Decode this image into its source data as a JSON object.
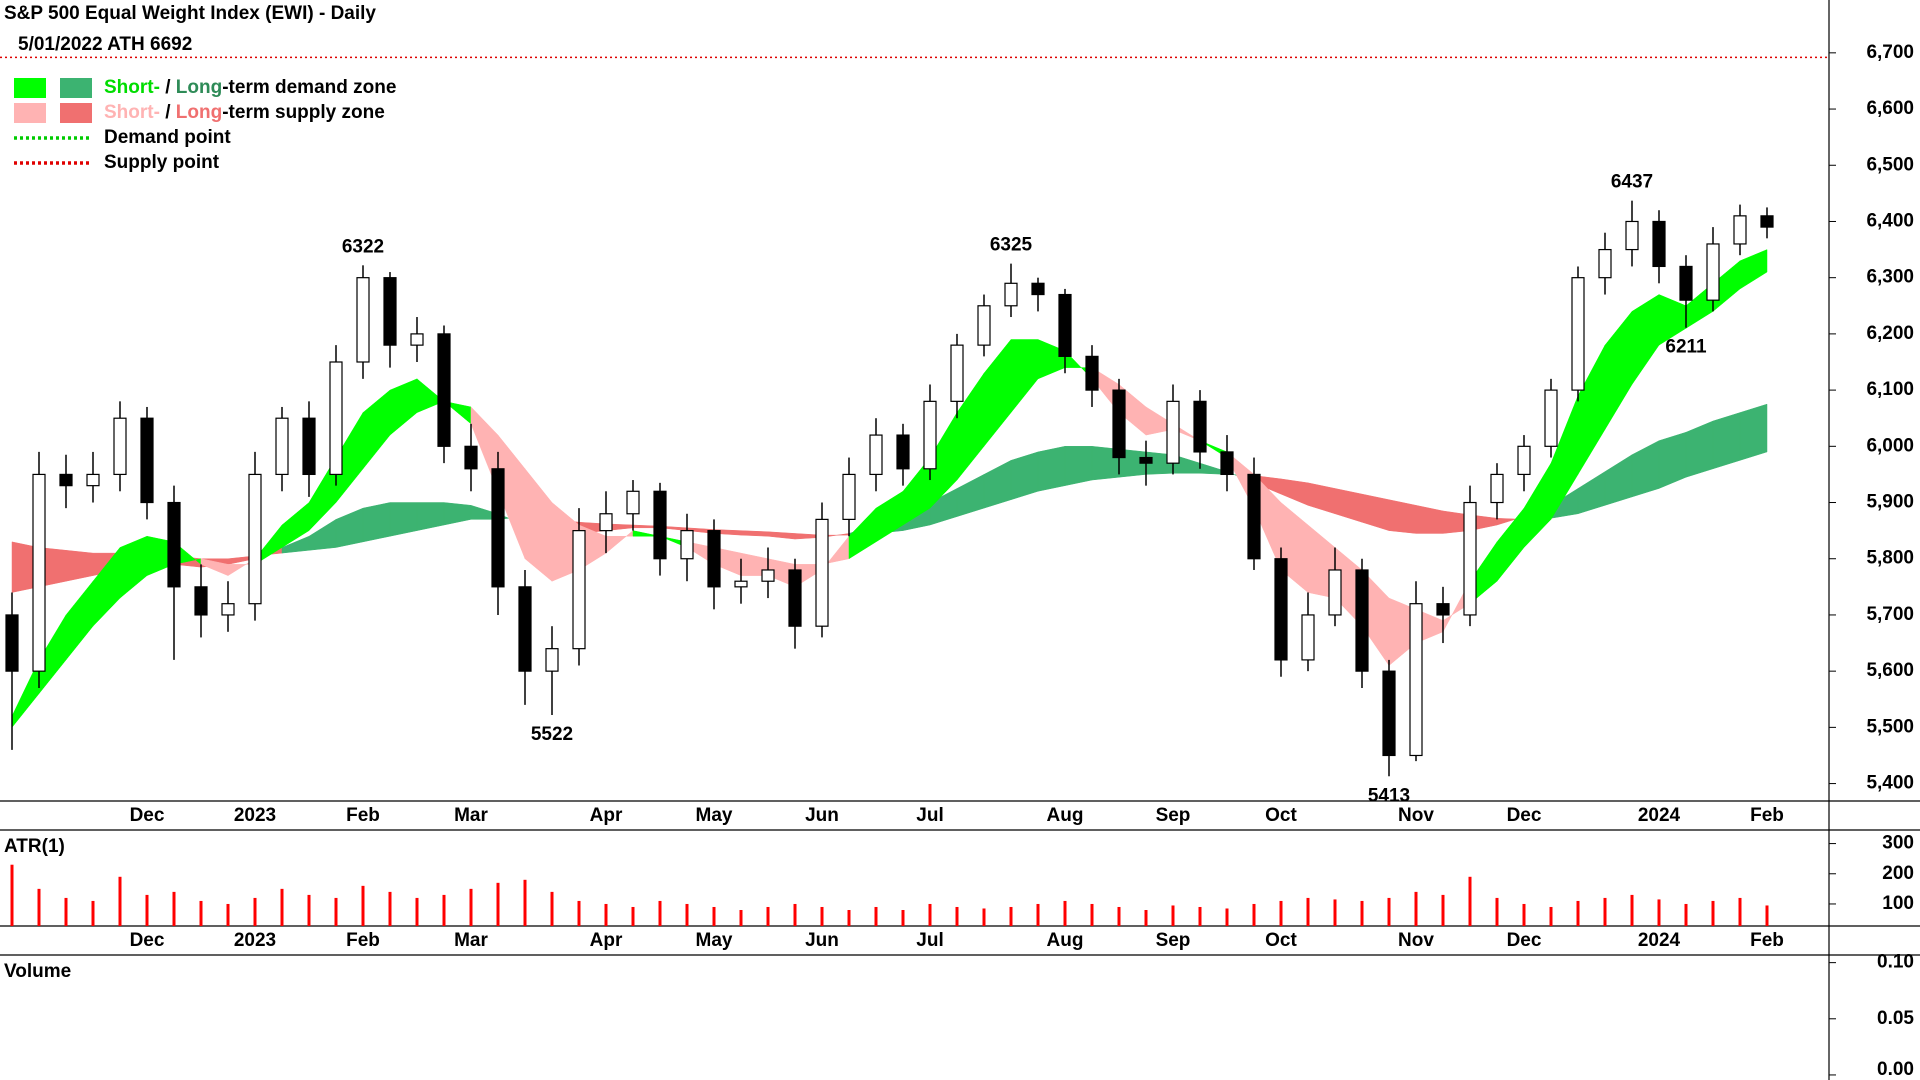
{
  "chart_data": {
    "type": "candlestick",
    "title": "S&P 500 Equal Weight Index (EWI) - Daily",
    "ath": {
      "label": "5/01/2022 ATH 6692",
      "value": 6692,
      "color": "#e00000"
    },
    "legend": [
      {
        "parts": [
          {
            "text": "Short-",
            "color": "#00dd00"
          },
          {
            "text": " / ",
            "color": "#000000"
          },
          {
            "text": "Long",
            "color": "#2e8b57"
          },
          {
            "text": "-term demand zone",
            "color": "#000000"
          }
        ],
        "swatches": [
          "#00ff00",
          "#3cb371"
        ]
      },
      {
        "parts": [
          {
            "text": "Short-",
            "color": "#ffb3b3"
          },
          {
            "text": " / ",
            "color": "#000000"
          },
          {
            "text": "Long",
            "color": "#f07070"
          },
          {
            "text": "-term supply zone",
            "color": "#000000"
          }
        ],
        "swatches": [
          "#ffb3b3",
          "#f07070"
        ]
      },
      {
        "parts": [
          {
            "text": "Demand point",
            "color": "#000000"
          }
        ],
        "line": "#00cc00"
      },
      {
        "parts": [
          {
            "text": "Supply point",
            "color": "#000000"
          }
        ],
        "line": "#e00000"
      }
    ],
    "categories": [
      null,
      null,
      null,
      null,
      null,
      "Dec",
      null,
      null,
      null,
      "2023",
      null,
      null,
      null,
      "Feb",
      null,
      null,
      null,
      "Mar",
      null,
      null,
      null,
      null,
      "Apr",
      null,
      null,
      null,
      "May",
      null,
      null,
      null,
      "Jun",
      null,
      null,
      null,
      "Jul",
      null,
      null,
      null,
      null,
      "Aug",
      null,
      null,
      null,
      "Sep",
      null,
      null,
      null,
      "Oct",
      null,
      null,
      null,
      null,
      "Nov",
      null,
      null,
      null,
      "Dec",
      null,
      null,
      null,
      null,
      "2024",
      null,
      null,
      null,
      "Feb"
    ],
    "ohlc": {
      "open": [
        5700,
        5600,
        5950,
        5930,
        5950,
        6050,
        5900,
        5750,
        5700,
        5720,
        5950,
        6050,
        5950,
        6150,
        6300,
        6180,
        6200,
        6000,
        5960,
        5750,
        5600,
        5640,
        5850,
        5880,
        5920,
        5800,
        5850,
        5750,
        5760,
        5780,
        5680,
        5870,
        5950,
        6020,
        5960,
        6080,
        6180,
        6250,
        6290,
        6270,
        6160,
        6100,
        5980,
        5970,
        6080,
        5990,
        5950,
        5800,
        5620,
        5700,
        5780,
        5600,
        5450,
        5720,
        5700,
        5900,
        5950,
        6000,
        6100,
        6300,
        6350,
        6400,
        6320,
        6260,
        6360,
        6410
      ],
      "high": [
        5740,
        5990,
        5985,
        5990,
        6080,
        6070,
        5930,
        5790,
        5760,
        5990,
        6070,
        6080,
        6180,
        6322,
        6310,
        6230,
        6215,
        6040,
        5990,
        5780,
        5680,
        5890,
        5920,
        5940,
        5935,
        5880,
        5870,
        5800,
        5820,
        5800,
        5900,
        5980,
        6050,
        6040,
        6110,
        6200,
        6270,
        6325,
        6300,
        6280,
        6180,
        6120,
        6010,
        6110,
        6100,
        6020,
        5980,
        5820,
        5740,
        5820,
        5800,
        5620,
        5760,
        5750,
        5930,
        5970,
        6020,
        6120,
        6320,
        6380,
        6437,
        6420,
        6340,
        6390,
        6430,
        6425
      ],
      "low": [
        5460,
        5570,
        5890,
        5900,
        5920,
        5870,
        5620,
        5660,
        5670,
        5690,
        5920,
        5910,
        5930,
        6120,
        6140,
        6150,
        5970,
        5920,
        5700,
        5540,
        5522,
        5610,
        5810,
        5850,
        5770,
        5760,
        5710,
        5720,
        5730,
        5640,
        5660,
        5840,
        5920,
        5930,
        5940,
        6050,
        6160,
        6230,
        6240,
        6130,
        6070,
        5950,
        5930,
        5950,
        5960,
        5920,
        5780,
        5590,
        5600,
        5680,
        5570,
        5413,
        5440,
        5650,
        5680,
        5870,
        5920,
        5980,
        6080,
        6270,
        6320,
        6290,
        6211,
        6240,
        6340,
        6370
      ],
      "close": [
        5600,
        5950,
        5930,
        5950,
        6050,
        5900,
        5750,
        5700,
        5720,
        5950,
        6050,
        5950,
        6150,
        6300,
        6180,
        6200,
        6000,
        5960,
        5750,
        5600,
        5640,
        5850,
        5880,
        5920,
        5800,
        5850,
        5750,
        5760,
        5780,
        5680,
        5870,
        5950,
        6020,
        5960,
        6080,
        6180,
        6250,
        6290,
        6270,
        6160,
        6100,
        5980,
        5970,
        6080,
        5990,
        5950,
        5800,
        5620,
        5700,
        5780,
        5600,
        5450,
        5720,
        5700,
        5900,
        5950,
        6000,
        6100,
        6300,
        6350,
        6400,
        6320,
        6260,
        6360,
        6410,
        6390
      ]
    },
    "short_zone": {
      "up_color": "#00ff00",
      "down_color": "#ffb3b3",
      "fast": [
        5520,
        5620,
        5700,
        5760,
        5820,
        5840,
        5830,
        5790,
        5770,
        5800,
        5860,
        5900,
        5980,
        6060,
        6100,
        6120,
        6080,
        6040,
        5920,
        5800,
        5760,
        5780,
        5810,
        5850,
        5840,
        5820,
        5790,
        5770,
        5770,
        5750,
        5780,
        5840,
        5890,
        5920,
        5980,
        6060,
        6130,
        6190,
        6190,
        6170,
        6120,
        6060,
        6020,
        6030,
        6010,
        5980,
        5890,
        5780,
        5740,
        5730,
        5680,
        5610,
        5650,
        5670,
        5760,
        5830,
        5890,
        5970,
        6090,
        6180,
        6240,
        6270,
        6250,
        6290,
        6330,
        6350
      ],
      "slow": [
        5500,
        5560,
        5620,
        5680,
        5730,
        5770,
        5790,
        5800,
        5790,
        5790,
        5820,
        5850,
        5900,
        5960,
        6020,
        6060,
        6080,
        6070,
        6020,
        5960,
        5900,
        5860,
        5840,
        5840,
        5840,
        5830,
        5820,
        5810,
        5800,
        5790,
        5790,
        5800,
        5830,
        5860,
        5890,
        5940,
        6000,
        6060,
        6120,
        6140,
        6140,
        6110,
        6070,
        6040,
        6010,
        5990,
        5950,
        5900,
        5860,
        5820,
        5780,
        5730,
        5710,
        5690,
        5720,
        5760,
        5820,
        5870,
        5950,
        6030,
        6110,
        6180,
        6210,
        6240,
        6280,
        6310
      ]
    },
    "long_zone": {
      "up_color": "#3cb371",
      "down_color": "#f07070",
      "fast": [
        5740,
        5750,
        5760,
        5770,
        5780,
        5790,
        5790,
        5785,
        5790,
        5800,
        5820,
        5840,
        5870,
        5890,
        5900,
        5900,
        5900,
        5895,
        5880,
        5860,
        5845,
        5845,
        5850,
        5855,
        5855,
        5850,
        5845,
        5842,
        5840,
        5835,
        5838,
        5845,
        5860,
        5880,
        5900,
        5925,
        5950,
        5975,
        5990,
        6000,
        6000,
        5995,
        5990,
        5985,
        5970,
        5955,
        5935,
        5915,
        5895,
        5880,
        5865,
        5850,
        5845,
        5845,
        5850,
        5860,
        5875,
        5895,
        5925,
        5955,
        5985,
        6010,
        6025,
        6045,
        6060,
        6075
      ],
      "slow": [
        5830,
        5820,
        5815,
        5810,
        5810,
        5810,
        5805,
        5800,
        5800,
        5805,
        5810,
        5815,
        5820,
        5830,
        5840,
        5850,
        5860,
        5870,
        5870,
        5875,
        5870,
        5865,
        5862,
        5860,
        5858,
        5855,
        5852,
        5850,
        5848,
        5845,
        5842,
        5842,
        5845,
        5850,
        5860,
        5875,
        5890,
        5905,
        5920,
        5930,
        5940,
        5945,
        5950,
        5952,
        5952,
        5950,
        5948,
        5942,
        5935,
        5925,
        5915,
        5905,
        5895,
        5885,
        5878,
        5872,
        5870,
        5872,
        5880,
        5895,
        5910,
        5925,
        5945,
        5960,
        5975,
        5990
      ]
    },
    "annotations": [
      {
        "label": "6322",
        "value": 6322
      },
      {
        "label": "5522",
        "value": 5522
      },
      {
        "label": "6325",
        "value": 6325
      },
      {
        "label": "5413",
        "value": 5413
      },
      {
        "label": "6437",
        "value": 6437
      },
      {
        "label": "6211",
        "value": 6211
      }
    ],
    "ylim": [
      5369,
      6794
    ],
    "yticks": [
      {
        "value": 5400,
        "label": "5,400"
      },
      {
        "value": 5500,
        "label": "5,500"
      },
      {
        "value": 5600,
        "label": "5,600"
      },
      {
        "value": 5700,
        "label": "5,700"
      },
      {
        "value": 5800,
        "label": "5,800"
      },
      {
        "value": 5900,
        "label": "5,900"
      },
      {
        "value": 6000,
        "label": "6,000"
      },
      {
        "value": 6100,
        "label": "6,100"
      },
      {
        "value": 6200,
        "label": "6,200"
      },
      {
        "value": 6300,
        "label": "6,300"
      },
      {
        "value": 6400,
        "label": "6,400"
      },
      {
        "value": 6500,
        "label": "6,500"
      },
      {
        "value": 6600,
        "label": "6,600"
      },
      {
        "value": 6700,
        "label": "6,700"
      }
    ],
    "atr": {
      "title": "ATR(1)",
      "color": "#ff0000",
      "values": [
        230,
        150,
        120,
        110,
        190,
        130,
        140,
        110,
        100,
        120,
        150,
        130,
        120,
        160,
        140,
        120,
        130,
        150,
        170,
        180,
        140,
        110,
        100,
        90,
        110,
        100,
        90,
        80,
        90,
        100,
        90,
        80,
        90,
        80,
        100,
        90,
        85,
        90,
        100,
        110,
        100,
        90,
        80,
        95,
        90,
        85,
        100,
        110,
        120,
        115,
        110,
        120,
        140,
        130,
        190,
        120,
        100,
        90,
        110,
        120,
        130,
        115,
        100,
        110,
        120,
        95
      ],
      "ylim": [
        27,
        345
      ],
      "yticks": [
        100,
        200,
        300
      ]
    },
    "volume": {
      "title": "Volume",
      "color": "#4b0082",
      "ylim": [
        -0.0045,
        0.1068
      ],
      "yticks": [
        {
          "value": 0,
          "label": "0.00"
        },
        {
          "value": 0.05,
          "label": "0.05"
        },
        {
          "value": 0.1,
          "label": "0.10"
        }
      ]
    }
  }
}
